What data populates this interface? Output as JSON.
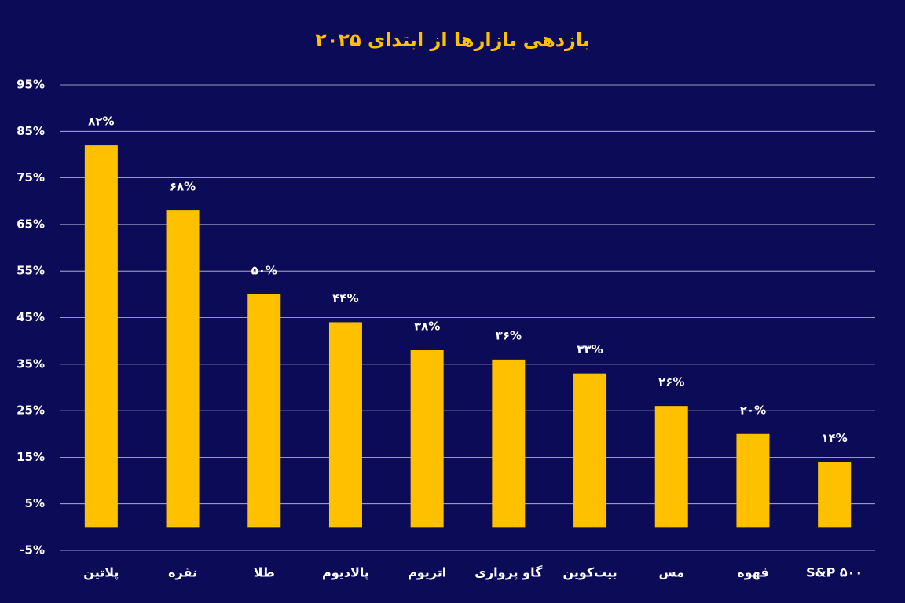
{
  "chart_data": {
    "type": "bar",
    "title": "بازدهی بازارها از ابتدای ۲۰۲۵",
    "categories": [
      "پلاتین",
      "نقره",
      "طلا",
      "پالادیوم",
      "اتریوم",
      "گاو پرواری",
      "بیت‌کوین",
      "مس",
      "قهوه",
      "S&P ۵۰۰"
    ],
    "values": [
      82,
      68,
      50,
      44,
      38,
      36,
      33,
      26,
      20,
      14
    ],
    "value_labels": [
      "۸۲%",
      "۶۸%",
      "۵۰%",
      "۴۴%",
      "۳۸%",
      "۳۶%",
      "۳۳%",
      "۲۶%",
      "۲۰%",
      "۱۴%"
    ],
    "color": "#ffc000",
    "ylim": [
      -5,
      95
    ],
    "yticks": [
      {
        "value": 95,
        "label": "95%"
      },
      {
        "value": 85,
        "label": "85%"
      },
      {
        "value": 75,
        "label": "75%"
      },
      {
        "value": 65,
        "label": "65%"
      },
      {
        "value": 55,
        "label": "55%"
      },
      {
        "value": 45,
        "label": "45%"
      },
      {
        "value": 35,
        "label": "35%"
      },
      {
        "value": 25,
        "label": "25%"
      },
      {
        "value": 15,
        "label": "15%"
      },
      {
        "value": 5,
        "label": "5%"
      },
      {
        "value": -5,
        "label": "-5%"
      }
    ],
    "grid": true
  }
}
